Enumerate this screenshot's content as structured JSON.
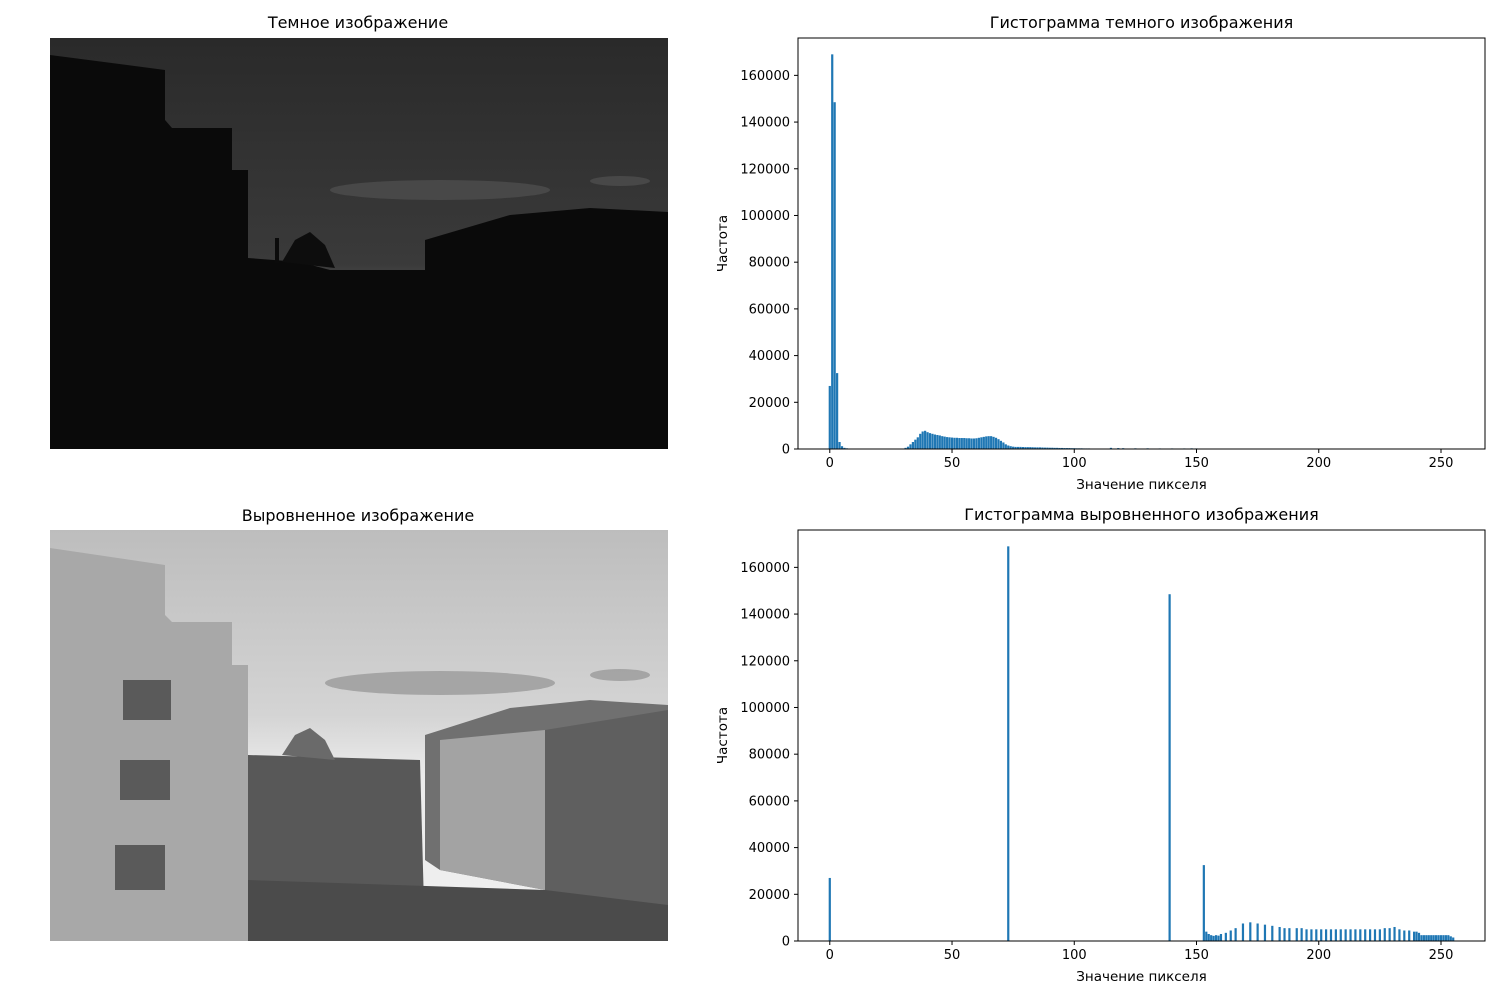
{
  "panels": {
    "dark_image_title": "Темное изображение",
    "equalized_image_title": "Выровненное изображение"
  },
  "colors": {
    "bar": "#1f77b4",
    "sky_dark_top": "#2b2b2b",
    "sky_eq_top": "#c4c4c4"
  },
  "chart_data": [
    {
      "type": "bar",
      "title": "Гистограмма темного изображения",
      "xlabel": "Значение пикселя",
      "ylabel": "Частота",
      "xlim": [
        -13,
        268
      ],
      "ylim": [
        0,
        176000
      ],
      "xticks": [
        0,
        50,
        100,
        150,
        200,
        250
      ],
      "yticks": [
        0,
        20000,
        40000,
        60000,
        80000,
        100000,
        120000,
        140000,
        160000
      ],
      "x": [
        0,
        1,
        2,
        3,
        4,
        5,
        6,
        7,
        8,
        9,
        10,
        30,
        31,
        32,
        33,
        34,
        35,
        36,
        37,
        38,
        39,
        40,
        41,
        42,
        43,
        44,
        45,
        46,
        47,
        48,
        49,
        50,
        51,
        52,
        53,
        54,
        55,
        56,
        57,
        58,
        59,
        60,
        61,
        62,
        63,
        64,
        65,
        66,
        67,
        68,
        69,
        70,
        71,
        72,
        73,
        74,
        75,
        76,
        77,
        78,
        79,
        80,
        81,
        82,
        83,
        84,
        85,
        86,
        87,
        88,
        89,
        90,
        91,
        92,
        93,
        94,
        95,
        96,
        97,
        98,
        99,
        100,
        101,
        102,
        103,
        104,
        105,
        106,
        107,
        108,
        109,
        110,
        115,
        118,
        120,
        125,
        130,
        135,
        140,
        145,
        148,
        150,
        155,
        160
      ],
      "values": [
        27000,
        169000,
        148500,
        32500,
        3000,
        1200,
        500,
        300,
        200,
        150,
        100,
        200,
        500,
        1000,
        2000,
        3000,
        4000,
        5000,
        6500,
        7500,
        7800,
        7200,
        6800,
        6500,
        6200,
        6000,
        5800,
        5500,
        5300,
        5100,
        5000,
        4900,
        4800,
        4800,
        4700,
        4700,
        4700,
        4600,
        4600,
        4500,
        4500,
        4600,
        4800,
        5000,
        5200,
        5400,
        5500,
        5500,
        5200,
        4800,
        4200,
        3500,
        2800,
        2000,
        1500,
        1200,
        1000,
        900,
        900,
        900,
        850,
        800,
        800,
        800,
        750,
        700,
        700,
        700,
        650,
        600,
        600,
        550,
        550,
        500,
        500,
        450,
        450,
        400,
        400,
        400,
        350,
        350,
        300,
        300,
        300,
        250,
        250,
        250,
        200,
        200,
        200,
        200,
        500,
        400,
        350,
        300,
        300,
        250,
        250,
        250,
        300,
        250,
        200,
        150
      ]
    },
    {
      "type": "bar",
      "title": "Гистограмма выровненного изображения",
      "xlabel": "Значение пикселя",
      "ylabel": "Частота",
      "xlim": [
        -13,
        268
      ],
      "ylim": [
        0,
        176000
      ],
      "xticks": [
        0,
        50,
        100,
        150,
        200,
        250
      ],
      "yticks": [
        0,
        20000,
        40000,
        60000,
        80000,
        100000,
        120000,
        140000,
        160000
      ],
      "x": [
        0,
        73,
        139,
        153,
        154,
        155,
        156,
        157,
        158,
        159,
        160,
        162,
        164,
        166,
        169,
        172,
        175,
        178,
        181,
        184,
        186,
        188,
        191,
        193,
        195,
        197,
        199,
        201,
        203,
        205,
        207,
        209,
        211,
        213,
        215,
        217,
        219,
        221,
        223,
        225,
        227,
        229,
        231,
        233,
        235,
        237,
        239,
        240,
        241,
        242,
        243,
        244,
        245,
        246,
        247,
        248,
        249,
        250,
        251,
        252,
        253,
        254,
        255
      ],
      "values": [
        27000,
        169000,
        148500,
        32500,
        4000,
        3000,
        2500,
        2200,
        2500,
        2300,
        3000,
        3500,
        4500,
        5500,
        7500,
        8000,
        7500,
        7000,
        6500,
        6000,
        5500,
        5500,
        5500,
        5500,
        5000,
        5000,
        5000,
        5000,
        5000,
        5000,
        5000,
        5000,
        5000,
        5000,
        5000,
        5000,
        5000,
        5000,
        5000,
        5000,
        5500,
        5500,
        6000,
        5000,
        4500,
        4500,
        4000,
        4000,
        3500,
        2500,
        2500,
        2500,
        2500,
        2500,
        2500,
        2500,
        2500,
        2500,
        2500,
        2500,
        2500,
        2000,
        1500
      ]
    }
  ]
}
